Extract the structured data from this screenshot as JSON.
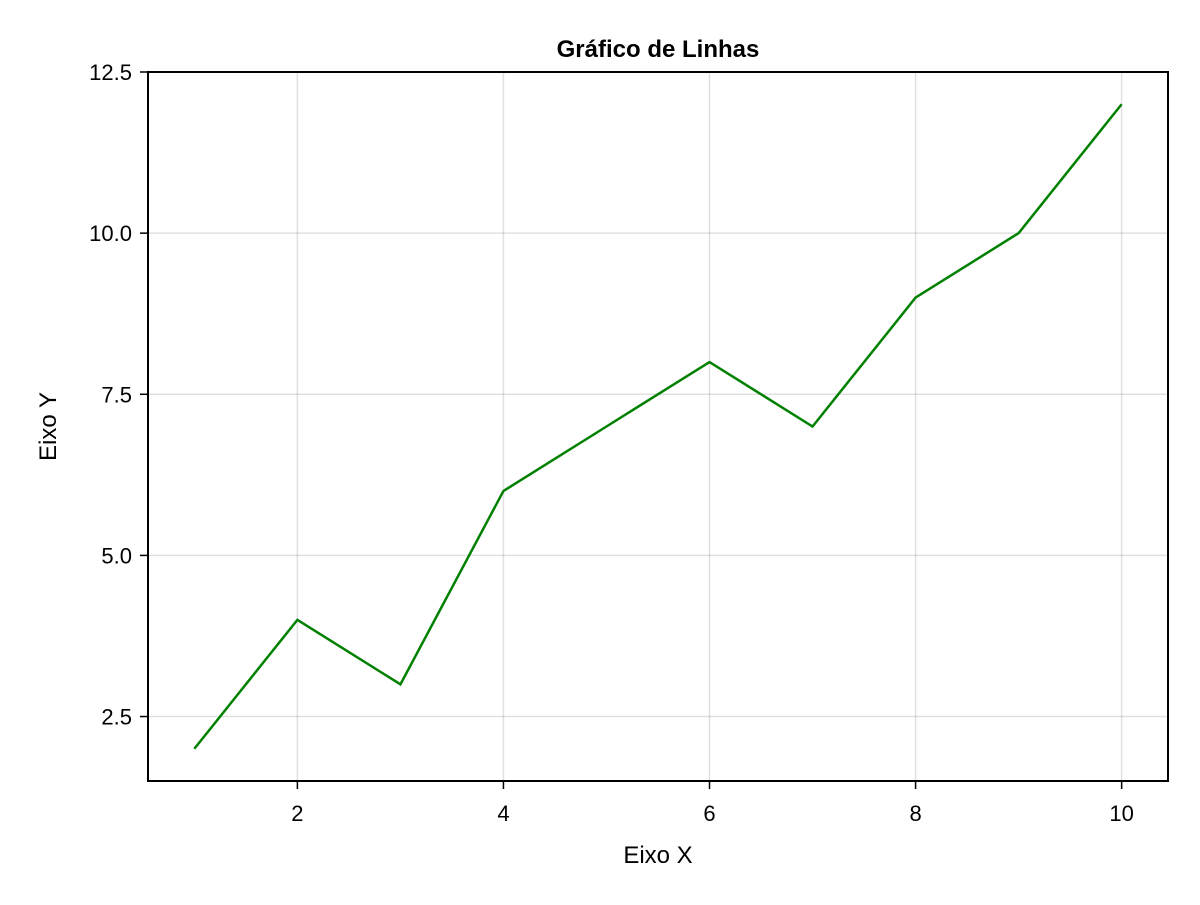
{
  "chart_data": {
    "type": "line",
    "title": "Gráfico de Linhas",
    "xlabel": "Eixo X",
    "ylabel": "Eixo Y",
    "x": [
      1,
      2,
      3,
      4,
      5,
      6,
      7,
      8,
      9,
      10
    ],
    "series": [
      {
        "values": [
          2,
          4,
          3,
          6,
          7,
          8,
          7,
          9,
          10,
          12
        ],
        "color": "#008000"
      }
    ],
    "xlim": [
      0.55,
      10.45
    ],
    "ylim": [
      1.5,
      12.5
    ],
    "xticks": [
      2,
      4,
      6,
      8,
      10
    ],
    "xtick_labels": [
      "2",
      "4",
      "6",
      "8",
      "10"
    ],
    "yticks": [
      2.5,
      5.0,
      7.5,
      10.0,
      12.5
    ],
    "ytick_labels": [
      "2.5",
      "5.0",
      "7.5",
      "10.0",
      "12.5"
    ],
    "grid": true,
    "legend": "none"
  }
}
